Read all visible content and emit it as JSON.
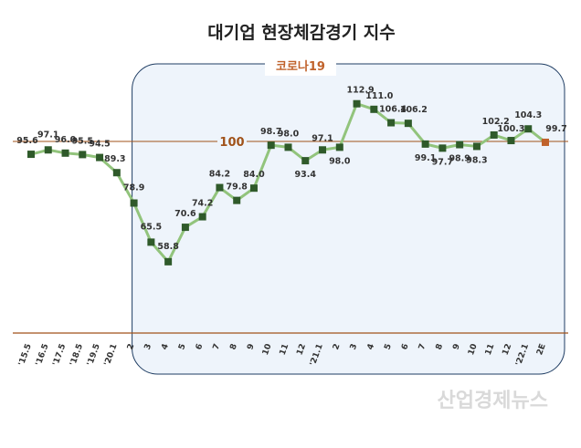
{
  "chart_data": {
    "type": "line",
    "title": "대기업 현장체감경기 지수",
    "categories": [
      "'15.5",
      "'16.5",
      "'17.5",
      "'18.5",
      "'19.5",
      "'20.1",
      "2",
      "3",
      "4",
      "5",
      "6",
      "7",
      "8",
      "9",
      "10",
      "11",
      "12",
      "'21.1",
      "2",
      "3",
      "4",
      "5",
      "6",
      "7",
      "8",
      "9",
      "10",
      "11",
      "12",
      "'22.1",
      "2E"
    ],
    "values": [
      95.6,
      97.1,
      96.0,
      95.5,
      94.5,
      89.3,
      78.9,
      65.5,
      58.8,
      70.6,
      74.2,
      84.2,
      79.8,
      84.0,
      98.7,
      98.0,
      93.4,
      97.1,
      98.0,
      112.9,
      111.0,
      106.4,
      106.2,
      99.1,
      97.7,
      98.9,
      98.3,
      102.2,
      100.3,
      104.3,
      99.7
    ],
    "labels": [
      "95.6",
      "97.1",
      "96.0",
      "95.5",
      "94.5",
      "89.3",
      "78.9",
      "65.5",
      "58.8",
      "70.6",
      "74.2",
      "84.2",
      "79.8",
      "84.0",
      "98.7",
      "98.0",
      "93.4",
      "97.1",
      "98.0",
      "112.9",
      "111.0",
      "106.4",
      "106.2",
      "99.1",
      "97.7",
      "98.9",
      "98.3",
      "102.2",
      "100.3",
      "104.3",
      "99.7"
    ],
    "reference_line": {
      "value": 100,
      "label": "100"
    },
    "highlight_region": {
      "label": "코로나19",
      "from_category_index": 6
    },
    "colors": {
      "line": "#92c47c",
      "marker": "#2f5a2a",
      "last_marker": "#c0622b",
      "reference": "#a0521a",
      "region_fill": "#eef4fb",
      "region_stroke": "#1f3d63",
      "covid_label": "#c0622b"
    }
  },
  "watermark": "산업경제뉴스"
}
